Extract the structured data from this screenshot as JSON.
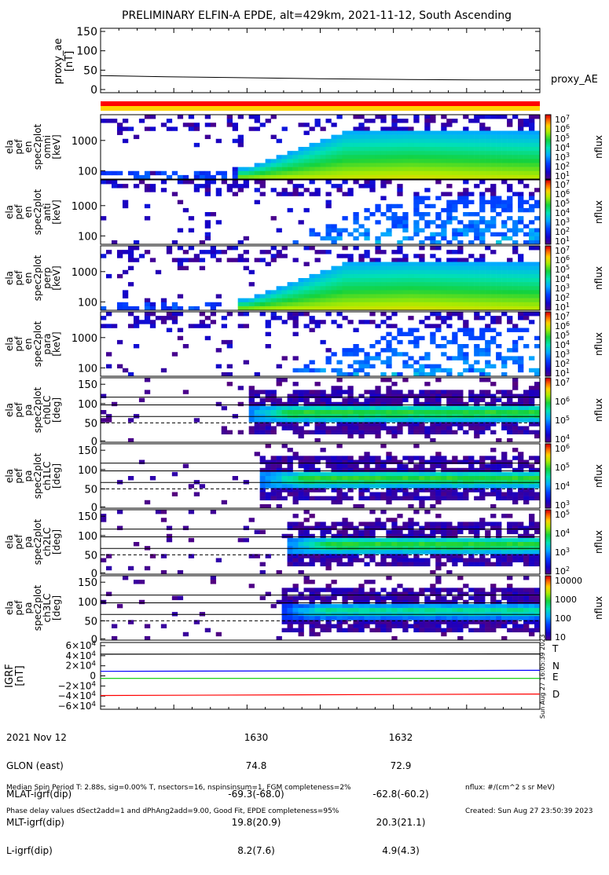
{
  "title": "PRELIMINARY ELFIN-A EPDE, alt=429km, 2021-11-12, South Ascending",
  "chart_data": [
    {
      "type": "line",
      "panel": "proxy_ae",
      "ylabel": [
        "proxy_ae",
        "[nT]"
      ],
      "yticks": [
        "150",
        "100",
        "50",
        "0"
      ],
      "ylim": [
        0,
        150
      ],
      "series": [
        {
          "name": "proxy_AE",
          "x": [
            0,
            0.05,
            0.15,
            0.3,
            0.5,
            0.7,
            0.85,
            1.0
          ],
          "values": [
            36,
            35,
            33,
            31,
            28,
            26,
            25,
            25
          ]
        }
      ]
    },
    {
      "type": "heatmap",
      "panel": "energy spectrogram 1",
      "ylabel": [
        "ela",
        "pef",
        "en",
        "spec2plot",
        "omni",
        "[keV]"
      ],
      "yticks": [
        "1000",
        "100"
      ],
      "cbar_ticks": [
        "10^7",
        "10^6",
        "10^5",
        "10^4",
        "10^3",
        "10^2",
        "10^1"
      ],
      "cbar_label": "nflux"
    },
    {
      "type": "heatmap",
      "panel": "energy spectrogram 2",
      "ylabel": [
        "ela",
        "pef",
        "en",
        "spec2plot",
        "anti",
        "[keV]"
      ],
      "yticks": [
        "1000",
        "100"
      ],
      "cbar_ticks": [
        "10^7",
        "10^6",
        "10^5",
        "10^4",
        "10^3",
        "10^2",
        "10^1"
      ],
      "cbar_label": "nflux"
    },
    {
      "type": "heatmap",
      "panel": "energy spectrogram 3",
      "ylabel": [
        "ela",
        "pef",
        "en",
        "spec2plot",
        "perp",
        "[keV]"
      ],
      "yticks": [
        "1000",
        "100"
      ],
      "cbar_ticks": [
        "10^7",
        "10^6",
        "10^5",
        "10^4",
        "10^3",
        "10^2",
        "10^1"
      ],
      "cbar_label": "nflux"
    },
    {
      "type": "heatmap",
      "panel": "energy spectrogram 4",
      "ylabel": [
        "ela",
        "pef",
        "en",
        "spec2plot",
        "para",
        "[keV]"
      ],
      "yticks": [
        "1000",
        "100"
      ],
      "cbar_ticks": [
        "10^7",
        "10^6",
        "10^5",
        "10^4",
        "10^3",
        "10^2",
        "10^1"
      ],
      "cbar_label": "nflux"
    },
    {
      "type": "heatmap",
      "panel": "pitch angle ch0LC",
      "ylabel": [
        "ela",
        "pef",
        "pa",
        "spec2plot",
        "ch0LC",
        "[deg]"
      ],
      "yticks": [
        "150",
        "100",
        "50",
        "0"
      ],
      "cbar_ticks": [
        "10^7",
        "10^6",
        "10^5",
        "10^4"
      ],
      "cbar_label": "nflux"
    },
    {
      "type": "heatmap",
      "panel": "pitch angle ch1LC",
      "ylabel": [
        "ela",
        "pef",
        "pa",
        "spec2plot",
        "ch1LC",
        "[deg]"
      ],
      "yticks": [
        "150",
        "100",
        "50",
        "0"
      ],
      "cbar_ticks": [
        "10^6",
        "10^5",
        "10^4",
        "10^3"
      ],
      "cbar_label": "nflux"
    },
    {
      "type": "heatmap",
      "panel": "pitch angle ch2LC",
      "ylabel": [
        "ela",
        "pef",
        "pa",
        "spec2plot",
        "ch2LC",
        "[deg]"
      ],
      "yticks": [
        "150",
        "100",
        "50",
        "0"
      ],
      "cbar_ticks": [
        "10^5",
        "10^4",
        "10^3",
        "10^2"
      ],
      "cbar_label": "nflux"
    },
    {
      "type": "heatmap",
      "panel": "pitch angle ch3LC",
      "ylabel": [
        "ela",
        "pef",
        "pa",
        "spec2plot",
        "ch3LC",
        "[deg]"
      ],
      "yticks": [
        "150",
        "100",
        "50",
        "0"
      ],
      "cbar_ticks": [
        "10000",
        "1000",
        "100",
        "10"
      ],
      "cbar_label": "nflux"
    },
    {
      "type": "line",
      "panel": "IGRF",
      "ylabel": [
        "IGRF",
        "[nT]"
      ],
      "yticks": [
        "6×10^4",
        "4×10^4",
        "2×10^4",
        "0",
        "−2×10^4",
        "−4×10^4",
        "−6×10^4"
      ],
      "ylim": [
        -60000,
        60000
      ],
      "series": [
        {
          "name": "T",
          "color": "#000000",
          "x": [
            0,
            1
          ],
          "values": [
            43000,
            43500
          ]
        },
        {
          "name": "N",
          "color": "#0000ff",
          "x": [
            0,
            1
          ],
          "values": [
            9000,
            11000
          ]
        },
        {
          "name": "E",
          "color": "#00cc00",
          "x": [
            0,
            1
          ],
          "values": [
            -5000,
            -5000
          ]
        },
        {
          "name": "D",
          "color": "#ff0000",
          "x": [
            0,
            1
          ],
          "values": [
            -39000,
            -36000
          ]
        }
      ]
    }
  ],
  "side_stamp": "Sun Aug 27 16:05:39 2023",
  "footer": {
    "row_labels": [
      "2021 Nov 12",
      "GLON (east)",
      "MLAT-igrf(dip)",
      "MLT-igrf(dip)",
      "L-igrf(dip)"
    ],
    "col1": [
      "1630",
      "74.8",
      "-69.3(-68.0)",
      "19.8(20.9)",
      "8.2(7.6)"
    ],
    "col2": [
      "1632",
      "72.9",
      "-62.8(-60.2)",
      "20.3(21.1)",
      "4.9(4.3)"
    ],
    "note1": "Median Spin Period T: 2.88s, sig=0.00% T, nsectors=16, nspinsinsum=1, FGM completeness=2%",
    "note2": "Phase delay values dSect2add=1 and dPhAng2add=9.00, Good Fit, EPDE completeness=95%",
    "units": "nflux: #/(cm^2 s sr MeV)",
    "created": "Created: Sun Aug 27 23:50:39 2023"
  }
}
